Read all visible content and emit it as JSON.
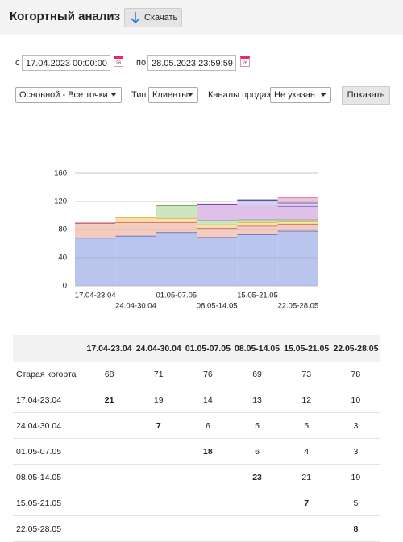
{
  "header": {
    "title": "Когортный анализ",
    "download_button": "Скачать"
  },
  "filters": {
    "from_label": "с",
    "from_value": "17.04.2023 00:00:00",
    "to_label": "по",
    "to_value": "28.05.2023 23:59:59",
    "calendar_icon": "26",
    "point_select": "Основной - Все точки",
    "type_label": "Тип",
    "type_select": "Клиенты",
    "channels_label": "Каналы продаж",
    "channels_select": "Не указан",
    "show_button": "Показать"
  },
  "chart": {
    "type": "stacked-step-area",
    "categories": [
      "17.04-23.04",
      "24.04-30.04",
      "01.05-07.05",
      "08.05-14.05",
      "15.05-21.05",
      "22.05-28.05"
    ],
    "ylim": [
      0,
      160
    ],
    "yticks": [
      0,
      40,
      80,
      120,
      160
    ],
    "grid": true,
    "colors": [
      {
        "fill": "#b3bfec",
        "stroke": "#4455c0"
      },
      {
        "fill": "#f2c6b8",
        "stroke": "#c0504d"
      },
      {
        "fill": "#f8dda4",
        "stroke": "#e8a33d"
      },
      {
        "fill": "#c8e3b6",
        "stroke": "#6aa84f"
      },
      {
        "fill": "#dcb9e6",
        "stroke": "#8e44ad"
      },
      {
        "fill": "#cfcff0",
        "stroke": "#3f3fa0"
      },
      {
        "fill": "#eebbd0",
        "stroke": "#c2185b"
      }
    ]
  },
  "table": {
    "columns": [
      "17.04-23.04",
      "24.04-30.04",
      "01.05-07.05",
      "08.05-14.05",
      "15.05-21.05",
      "22.05-28.05"
    ],
    "rows": [
      {
        "label": "Старая когорта",
        "values": [
          68,
          71,
          76,
          69,
          73,
          78
        ]
      },
      {
        "label": "17.04-23.04",
        "values": [
          21,
          19,
          14,
          13,
          12,
          10
        ]
      },
      {
        "label": "24.04-30.04",
        "values": [
          null,
          7,
          6,
          5,
          5,
          3
        ]
      },
      {
        "label": "01.05-07.05",
        "values": [
          null,
          null,
          18,
          6,
          4,
          3
        ]
      },
      {
        "label": "08.05-14.05",
        "values": [
          null,
          null,
          null,
          23,
          21,
          19
        ]
      },
      {
        "label": "15.05-21.05",
        "values": [
          null,
          null,
          null,
          null,
          7,
          5
        ]
      },
      {
        "label": "22.05-28.05",
        "values": [
          null,
          null,
          null,
          null,
          null,
          8
        ]
      }
    ]
  }
}
